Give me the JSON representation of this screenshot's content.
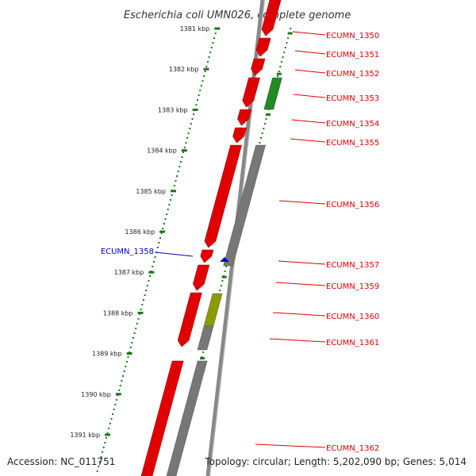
{
  "title": "Escherichia coli UMN026, complete genome",
  "ruler_labels": [
    "1381 kbp",
    "1382 kbp",
    "1383 kbp",
    "1384 kbp",
    "1385 kbp",
    "1386 kbp",
    "1387 kbp",
    "1388 kbp",
    "1389 kbp",
    "1390 kbp",
    "1391 kbp"
  ],
  "genes": [
    {
      "id": "ECUMN_1350",
      "color": "#e00000",
      "strand": "reverse",
      "kind": "forward-row"
    },
    {
      "id": "ECUMN_1351",
      "color": "#e00000",
      "strand": "reverse",
      "kind": "forward-row"
    },
    {
      "id": "ECUMN_1352",
      "color": "#e00000",
      "strand": "reverse",
      "kind": "forward-row"
    },
    {
      "id": "ECUMN_1353",
      "color": "#e00000",
      "strand": "reverse",
      "kind": "forward-row"
    },
    {
      "id": "ECUMN_1354",
      "color": "#e00000",
      "strand": "reverse",
      "kind": "forward-row"
    },
    {
      "id": "ECUMN_1355",
      "color": "#e00000",
      "strand": "reverse",
      "kind": "forward-row"
    },
    {
      "id": "ECUMN_1356",
      "color": "#e00000",
      "strand": "reverse",
      "kind": "forward-row"
    },
    {
      "id": "ECUMN_1357",
      "color": "#e00000",
      "strand": "reverse",
      "kind": "forward-row"
    },
    {
      "id": "ECUMN_1359",
      "color": "#e00000",
      "strand": "reverse",
      "kind": "forward-row"
    },
    {
      "id": "ECUMN_1360",
      "color": "#e00000",
      "strand": "reverse",
      "kind": "forward-row"
    },
    {
      "id": "ECUMN_1361",
      "color": "#e00000",
      "strand": "reverse",
      "kind": "forward-row"
    },
    {
      "id": "ECUMN_1362",
      "color": "#e00000",
      "strand": "reverse",
      "kind": "forward-row"
    }
  ],
  "left_gene": {
    "id": "ECUMN_1358",
    "color": "#0000cc"
  },
  "colors": {
    "cds": "#e00000",
    "cds_dark": "#a00000",
    "rna": "#228b22",
    "pseudo": "#777777",
    "olive": "#8a9a00",
    "backbone": "#888888",
    "ruler": "#1a7a1a",
    "left_label": "#0000cc",
    "right_label": "#cc0000"
  },
  "footer": {
    "accession": "Accession: NC_011751",
    "info": "Topology: circular; Length: 5,202,090 bp; Genes: 5,014"
  }
}
